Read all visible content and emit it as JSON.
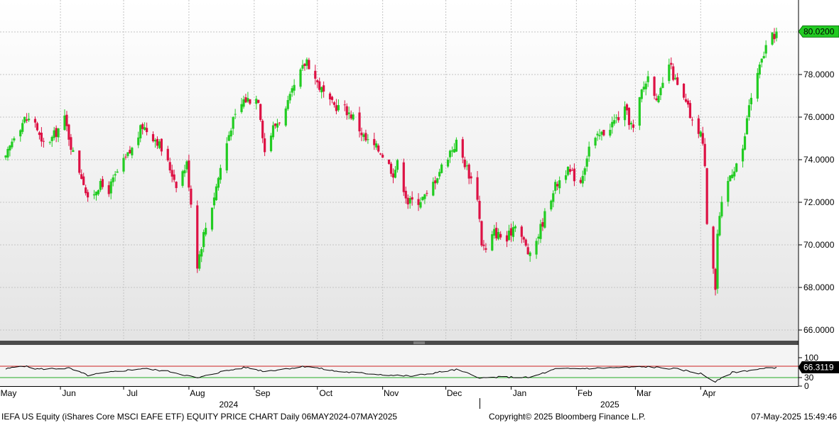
{
  "footer": {
    "left": "IEFA US Equity (iShares Core MSCI EAFE ETF) EQUITY PRICE CHART  Daily 06MAY2024-07MAY2025",
    "center": "Copyright© 2025 Bloomberg Finance L.P.",
    "right": "07-May-2025 15:49:46"
  },
  "colors": {
    "up": "#22cc22",
    "down": "#dd1144",
    "last_badge": "#22cc22",
    "rsi_line": "#000000",
    "rsi_upper": "#cc2222",
    "rsi_lower": "#22aa22"
  },
  "chart_data": [
    {
      "type": "candlestick",
      "title": "",
      "ylim": [
        65.5,
        81.5
      ],
      "yticks": [
        "66.0000",
        "68.0000",
        "70.0000",
        "72.0000",
        "74.0000",
        "76.0000",
        "78.0000",
        "80.0000"
      ],
      "grid": true,
      "last_value": "80.0200",
      "waypoints": [
        [
          "2024-05-06",
          74.0
        ],
        [
          "2024-05-10",
          75.2
        ],
        [
          "2024-05-15",
          75.9
        ],
        [
          "2024-05-20",
          75.8
        ],
        [
          "2024-05-23",
          74.7
        ],
        [
          "2024-05-28",
          75.0
        ],
        [
          "2024-06-03",
          75.9
        ],
        [
          "2024-06-07",
          74.3
        ],
        [
          "2024-06-12",
          73.0
        ],
        [
          "2024-06-14",
          72.0
        ],
        [
          "2024-06-19",
          72.8
        ],
        [
          "2024-06-24",
          72.6
        ],
        [
          "2024-06-28",
          73.4
        ],
        [
          "2024-07-05",
          74.5
        ],
        [
          "2024-07-10",
          75.6
        ],
        [
          "2024-07-17",
          74.9
        ],
        [
          "2024-07-23",
          73.6
        ],
        [
          "2024-07-26",
          72.9
        ],
        [
          "2024-07-31",
          73.8
        ],
        [
          "2024-08-02",
          72.0
        ],
        [
          "2024-08-05",
          69.1
        ],
        [
          "2024-08-08",
          70.5
        ],
        [
          "2024-08-12",
          71.9
        ],
        [
          "2024-08-16",
          73.6
        ],
        [
          "2024-08-21",
          75.6
        ],
        [
          "2024-08-27",
          76.8
        ],
        [
          "2024-09-03",
          76.9
        ],
        [
          "2024-09-06",
          74.4
        ],
        [
          "2024-09-10",
          75.5
        ],
        [
          "2024-09-16",
          76.3
        ],
        [
          "2024-09-20",
          77.4
        ],
        [
          "2024-09-26",
          78.7
        ],
        [
          "2024-10-01",
          77.6
        ],
        [
          "2024-10-07",
          76.6
        ],
        [
          "2024-10-14",
          76.4
        ],
        [
          "2024-10-18",
          76.0
        ],
        [
          "2024-10-24",
          74.9
        ],
        [
          "2024-10-31",
          74.4
        ],
        [
          "2024-11-06",
          73.4
        ],
        [
          "2024-11-08",
          73.8
        ],
        [
          "2024-11-13",
          72.0
        ],
        [
          "2024-11-18",
          72.1
        ],
        [
          "2024-11-22",
          72.3
        ],
        [
          "2024-11-27",
          73.3
        ],
        [
          "2024-12-03",
          74.4
        ],
        [
          "2024-12-06",
          74.8
        ],
        [
          "2024-12-11",
          73.6
        ],
        [
          "2024-12-16",
          72.3
        ],
        [
          "2024-12-18",
          70.1
        ],
        [
          "2024-12-20",
          69.7
        ],
        [
          "2024-12-24",
          70.6
        ],
        [
          "2024-12-30",
          70.2
        ],
        [
          "2025-01-03",
          71.1
        ],
        [
          "2025-01-08",
          69.9
        ],
        [
          "2025-01-10",
          69.4
        ],
        [
          "2025-01-15",
          70.8
        ],
        [
          "2025-01-21",
          72.6
        ],
        [
          "2025-01-27",
          73.5
        ],
        [
          "2025-02-03",
          73.0
        ],
        [
          "2025-02-07",
          74.6
        ],
        [
          "2025-02-13",
          75.2
        ],
        [
          "2025-02-19",
          75.8
        ],
        [
          "2025-02-24",
          76.3
        ],
        [
          "2025-02-28",
          75.4
        ],
        [
          "2025-03-04",
          77.2
        ],
        [
          "2025-03-07",
          77.9
        ],
        [
          "2025-03-12",
          76.8
        ],
        [
          "2025-03-17",
          78.5
        ],
        [
          "2025-03-21",
          77.4
        ],
        [
          "2025-03-26",
          76.4
        ],
        [
          "2025-03-28",
          75.7
        ],
        [
          "2025-04-01",
          75.3
        ],
        [
          "2025-04-03",
          73.9
        ],
        [
          "2025-04-04",
          71.2
        ],
        [
          "2025-04-07",
          69.0
        ],
        [
          "2025-04-08",
          67.9
        ],
        [
          "2025-04-09",
          70.5
        ],
        [
          "2025-04-11",
          71.8
        ],
        [
          "2025-04-15",
          73.3
        ],
        [
          "2025-04-21",
          74.4
        ],
        [
          "2025-04-24",
          76.6
        ],
        [
          "2025-04-29",
          78.3
        ],
        [
          "2025-05-02",
          79.3
        ],
        [
          "2025-05-07",
          80.02
        ]
      ]
    },
    {
      "type": "line",
      "title": "",
      "ylim": [
        0,
        100
      ],
      "yticks": [
        "0",
        "30",
        "100"
      ],
      "levels": [
        70,
        30
      ],
      "last_value": "66.3119",
      "waypoints": [
        [
          "2024-05-06",
          60
        ],
        [
          "2024-05-14",
          72
        ],
        [
          "2024-05-21",
          60
        ],
        [
          "2024-06-05",
          63
        ],
        [
          "2024-06-14",
          38
        ],
        [
          "2024-06-28",
          52
        ],
        [
          "2024-07-10",
          62
        ],
        [
          "2024-07-24",
          50
        ],
        [
          "2024-08-05",
          28
        ],
        [
          "2024-08-16",
          50
        ],
        [
          "2024-08-28",
          66
        ],
        [
          "2024-09-06",
          52
        ],
        [
          "2024-09-26",
          70
        ],
        [
          "2024-10-10",
          52
        ],
        [
          "2024-10-25",
          44
        ],
        [
          "2024-11-06",
          38
        ],
        [
          "2024-11-15",
          35
        ],
        [
          "2024-12-06",
          58
        ],
        [
          "2024-12-18",
          28
        ],
        [
          "2024-12-27",
          32
        ],
        [
          "2025-01-10",
          30
        ],
        [
          "2025-01-22",
          60
        ],
        [
          "2025-02-10",
          63
        ],
        [
          "2025-02-25",
          66
        ],
        [
          "2025-03-07",
          68
        ],
        [
          "2025-03-21",
          60
        ],
        [
          "2025-04-01",
          44
        ],
        [
          "2025-04-08",
          15
        ],
        [
          "2025-04-16",
          48
        ],
        [
          "2025-04-29",
          60
        ],
        [
          "2025-05-07",
          66
        ]
      ]
    }
  ],
  "x_axis": {
    "months": [
      {
        "label": "May",
        "date": "2024-05-01"
      },
      {
        "label": "Jun",
        "date": "2024-06-01"
      },
      {
        "label": "Jul",
        "date": "2024-07-01"
      },
      {
        "label": "Aug",
        "date": "2024-08-01"
      },
      {
        "label": "Sep",
        "date": "2024-09-01"
      },
      {
        "label": "Oct",
        "date": "2024-10-01"
      },
      {
        "label": "Nov",
        "date": "2024-11-01"
      },
      {
        "label": "Dec",
        "date": "2024-12-01"
      },
      {
        "label": "Jan",
        "date": "2025-01-01"
      },
      {
        "label": "Feb",
        "date": "2025-02-01"
      },
      {
        "label": "Mar",
        "date": "2025-03-01"
      },
      {
        "label": "Apr",
        "date": "2025-04-01"
      }
    ],
    "years": [
      {
        "label": "2024",
        "date": "2024-09-01"
      },
      {
        "label": "2025",
        "date": "2025-03-01"
      }
    ]
  }
}
